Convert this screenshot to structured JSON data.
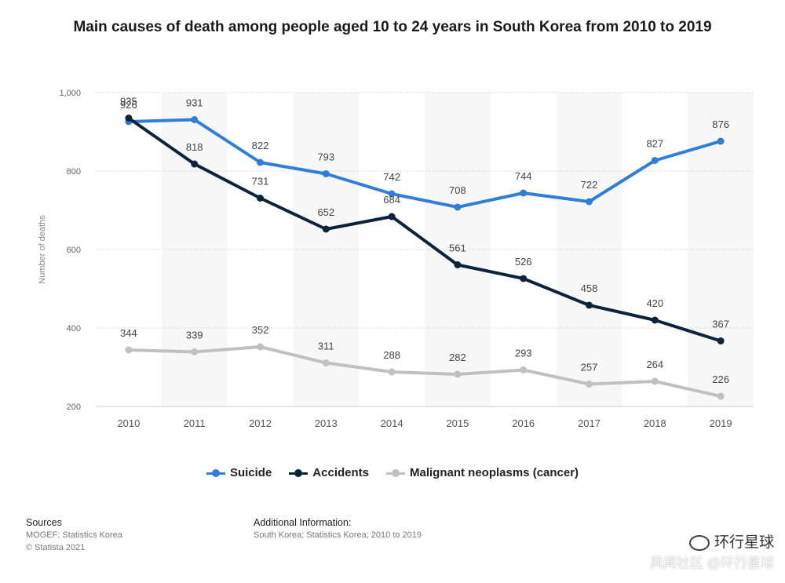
{
  "title": "Main causes of death among people aged 10 to 24 years in South Korea from 2010 to 2019",
  "chart_data": {
    "type": "line",
    "x": [
      "2010",
      "2011",
      "2012",
      "2013",
      "2014",
      "2015",
      "2016",
      "2017",
      "2018",
      "2019"
    ],
    "series": [
      {
        "name": "Suicide",
        "color": "#2f7ed8",
        "values": [
          926,
          931,
          822,
          793,
          742,
          708,
          744,
          722,
          827,
          876
        ]
      },
      {
        "name": "Accidents",
        "color": "#0d233a",
        "values": [
          935,
          818,
          731,
          652,
          684,
          561,
          526,
          458,
          420,
          367
        ]
      },
      {
        "name": "Malignant neoplasms (cancer)",
        "color": "#c0c0c0",
        "values": [
          344,
          339,
          352,
          311,
          288,
          282,
          293,
          257,
          264,
          226
        ]
      }
    ],
    "ylabel": "Number of deaths",
    "ylim": [
      200,
      1000
    ],
    "yticks": [
      200,
      400,
      600,
      800,
      1000
    ],
    "ytick_labels": [
      "200",
      "400",
      "600",
      "800",
      "1,000"
    ],
    "grid": true,
    "legend": "bottom-center"
  },
  "legend": {
    "items": [
      "Suicide",
      "Accidents",
      "Malignant neoplasms (cancer)"
    ]
  },
  "footer": {
    "sources_heading": "Sources",
    "sources_lines": [
      "MOGEF; Statistics Korea",
      "© Statista 2021"
    ],
    "additional_heading": "Additional Information:",
    "additional_text": "South Korea; Statistics Korea; 2010 to 2019"
  },
  "watermark": {
    "line1": "环行星球",
    "line2": "风闻社区 @环行星球"
  }
}
